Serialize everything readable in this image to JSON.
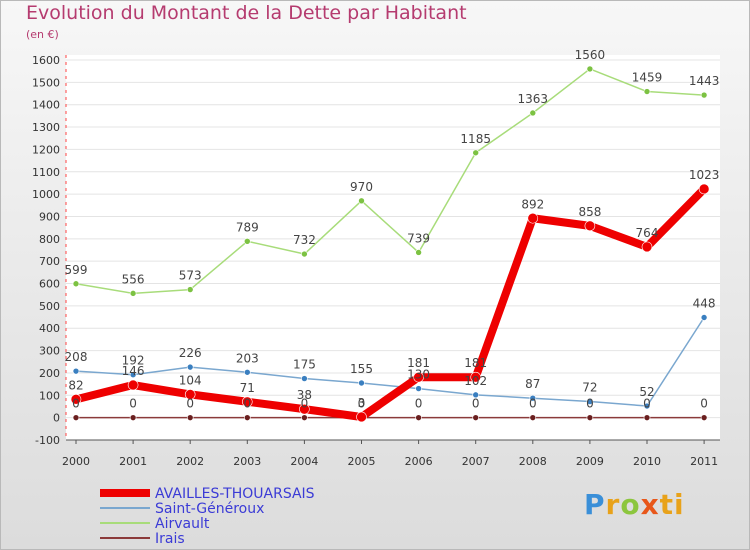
{
  "chart_data": {
    "type": "line",
    "title": "Evolution du Montant de la Dette par Habitant",
    "subtitle": "(en €)",
    "xlabel": "",
    "ylabel": "",
    "x": [
      "2000",
      "2001",
      "2002",
      "2003",
      "2004",
      "2005",
      "2006",
      "2007",
      "2008",
      "2009",
      "2010",
      "2011"
    ],
    "ylim": [
      -100,
      1600
    ],
    "yticks": [
      -100,
      0,
      100,
      200,
      300,
      400,
      500,
      600,
      700,
      800,
      900,
      1000,
      1100,
      1200,
      1300,
      1400,
      1500,
      1600
    ],
    "legend_position": "bottom-left",
    "series": [
      {
        "name": "AVAILLES-THOUARSAIS",
        "color": "#ee0000",
        "point_color": "#ee0000",
        "width": 8,
        "values": [
          82,
          146,
          104,
          71,
          38,
          3,
          181,
          181,
          892,
          858,
          764,
          1023
        ]
      },
      {
        "name": "Saint-Généroux",
        "color": "#7aa7cf",
        "point_color": "#3a7fc0",
        "width": 1.5,
        "values": [
          208,
          192,
          226,
          203,
          175,
          155,
          130,
          102,
          87,
          72,
          52,
          448
        ]
      },
      {
        "name": "Airvault",
        "color": "#a8dc7a",
        "point_color": "#7cc242",
        "width": 1.5,
        "values": [
          599,
          556,
          573,
          789,
          732,
          970,
          739,
          1185,
          1363,
          1560,
          1459,
          1443
        ]
      },
      {
        "name": "Irais",
        "color": "#8b3a3a",
        "point_color": "#6a1f1f",
        "width": 1.5,
        "values": [
          0,
          0,
          0,
          0,
          0,
          0,
          0,
          0,
          0,
          0,
          0,
          0
        ]
      }
    ]
  },
  "logo": {
    "p": "P",
    "r": "r",
    "o": "o",
    "x": "x",
    "i": "i",
    "t": "ti"
  }
}
